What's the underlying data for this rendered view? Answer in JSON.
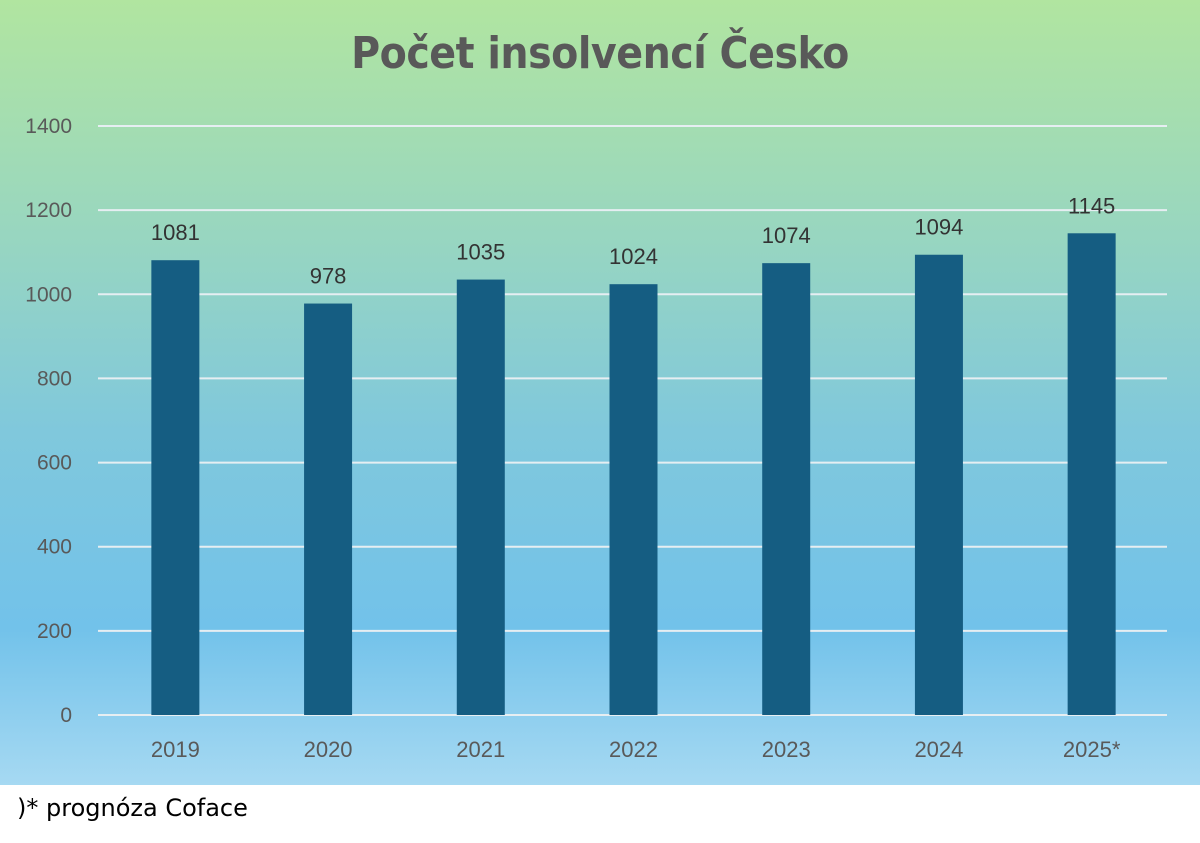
{
  "chart_data": {
    "type": "bar",
    "title": "Počet insolvencí Česko",
    "categories": [
      "2019",
      "2020",
      "2021",
      "2022",
      "2023",
      "2024",
      "2025*"
    ],
    "values": [
      1081,
      978,
      1035,
      1024,
      1074,
      1094,
      1145
    ],
    "ylim": [
      0,
      1400
    ],
    "yticks": [
      0,
      200,
      400,
      600,
      800,
      1000,
      1200,
      1400
    ],
    "grid": true,
    "data_labels": true,
    "colors": {
      "bar": "#155d82",
      "grid": "#e6eef2",
      "text": "#595959"
    }
  },
  "footnote": ")* prognóza Coface"
}
